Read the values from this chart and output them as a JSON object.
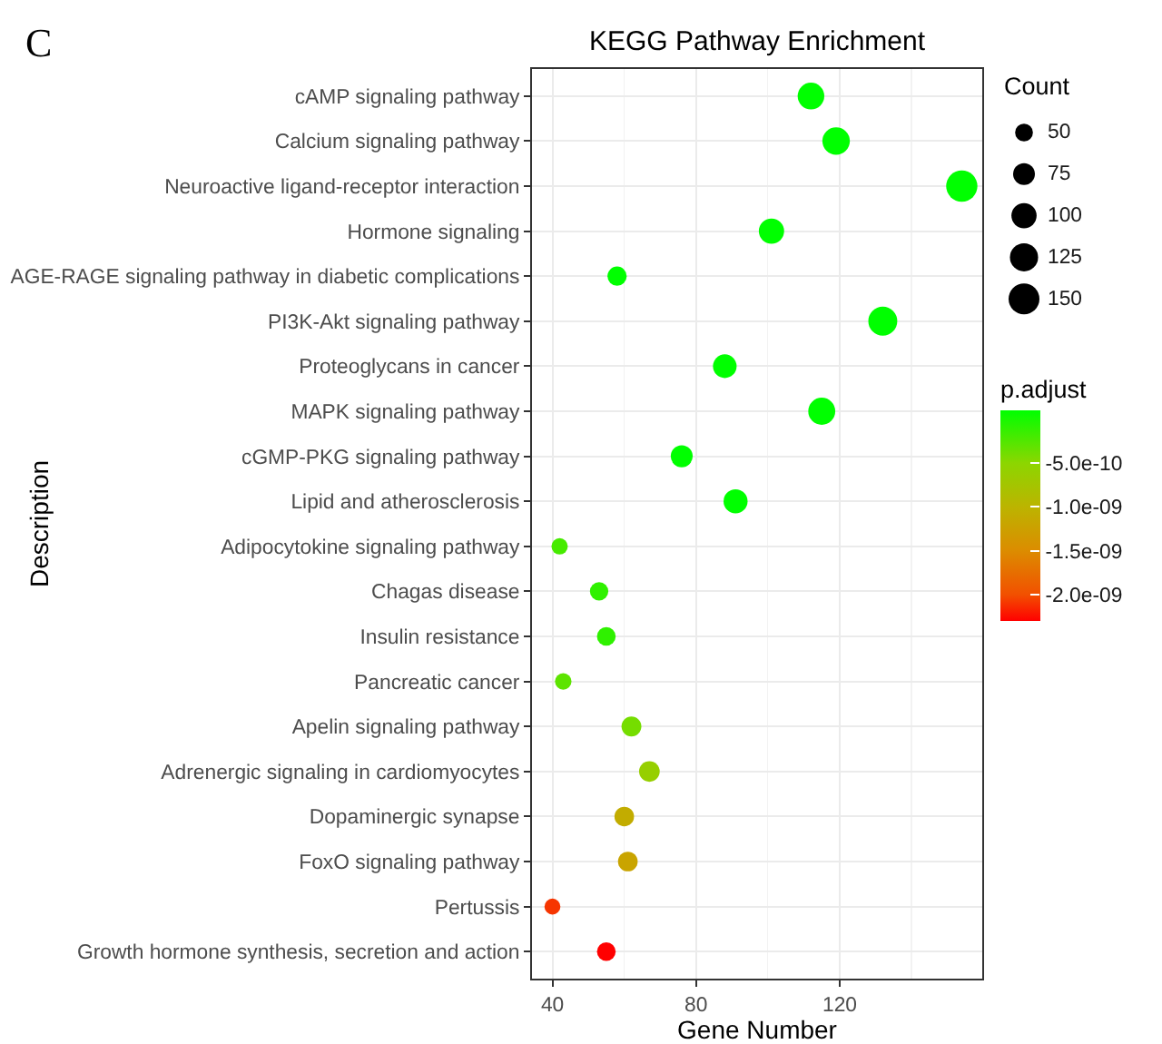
{
  "chart_data": {
    "type": "bubble",
    "orientation": "horizontal",
    "title": "KEGG Pathway Enrichment",
    "xlabel": "Gene Number",
    "ylabel": "Description",
    "legend_title": "Count",
    "clabel": "p.adjust",
    "annotations": [
      "C"
    ],
    "categories": [
      "cAMP signaling pathway",
      "Calcium signaling pathway",
      "Neuroactive ligand-receptor interaction",
      "Hormone signaling",
      "AGE-RAGE signaling pathway in diabetic complications",
      "PI3K-Akt signaling pathway",
      "Proteoglycans in cancer",
      "MAPK signaling pathway",
      "cGMP-PKG signaling pathway",
      "Lipid and atherosclerosis",
      "Adipocytokine signaling pathway",
      "Chagas disease",
      "Insulin resistance",
      "Pancreatic cancer",
      "Apelin signaling pathway",
      "Adrenergic signaling in cardiomyocytes",
      "Dopaminergic synapse",
      "FoxO signaling pathway",
      "Pertussis",
      "Growth hormone synthesis, secretion and action"
    ],
    "values": [
      112,
      119,
      154,
      101,
      58,
      132,
      88,
      115,
      76,
      91,
      42,
      53,
      55,
      43,
      62,
      67,
      60,
      61,
      40,
      55
    ],
    "sizes": [
      112,
      119,
      154,
      101,
      58,
      132,
      88,
      115,
      76,
      91,
      42,
      53,
      55,
      43,
      62,
      67,
      60,
      61,
      40,
      55
    ],
    "size_legend": [
      50,
      75,
      100,
      125,
      150
    ],
    "cvalues": [
      1e-10,
      1e-10,
      1e-10,
      1e-10,
      1e-10,
      1e-10,
      1e-10,
      1e-10,
      1e-10,
      1e-10,
      -2e-10,
      -1e-10,
      -1e-10,
      -3e-10,
      -4e-10,
      -6e-10,
      -1.1e-09,
      -1.2e-09,
      -2.1e-09,
      -2.3e-09
    ],
    "clim": [
      -2.3e-09,
      1e-10
    ],
    "cticks": [
      {
        "value": -5e-10,
        "label": "-5.0e-10"
      },
      {
        "value": -1e-09,
        "label": "-1.0e-09"
      },
      {
        "value": -1.5e-09,
        "label": "-1.5e-09"
      },
      {
        "value": -2e-09,
        "label": "-2.0e-09"
      }
    ],
    "xlim": [
      34.3,
      159.7
    ],
    "xticks": [
      40,
      80,
      120,
      {
        "value": 60,
        "label": null
      },
      {
        "value": 100,
        "label": null
      },
      {
        "value": 140,
        "label": null
      }
    ],
    "grid": true,
    "marker": "circle"
  }
}
